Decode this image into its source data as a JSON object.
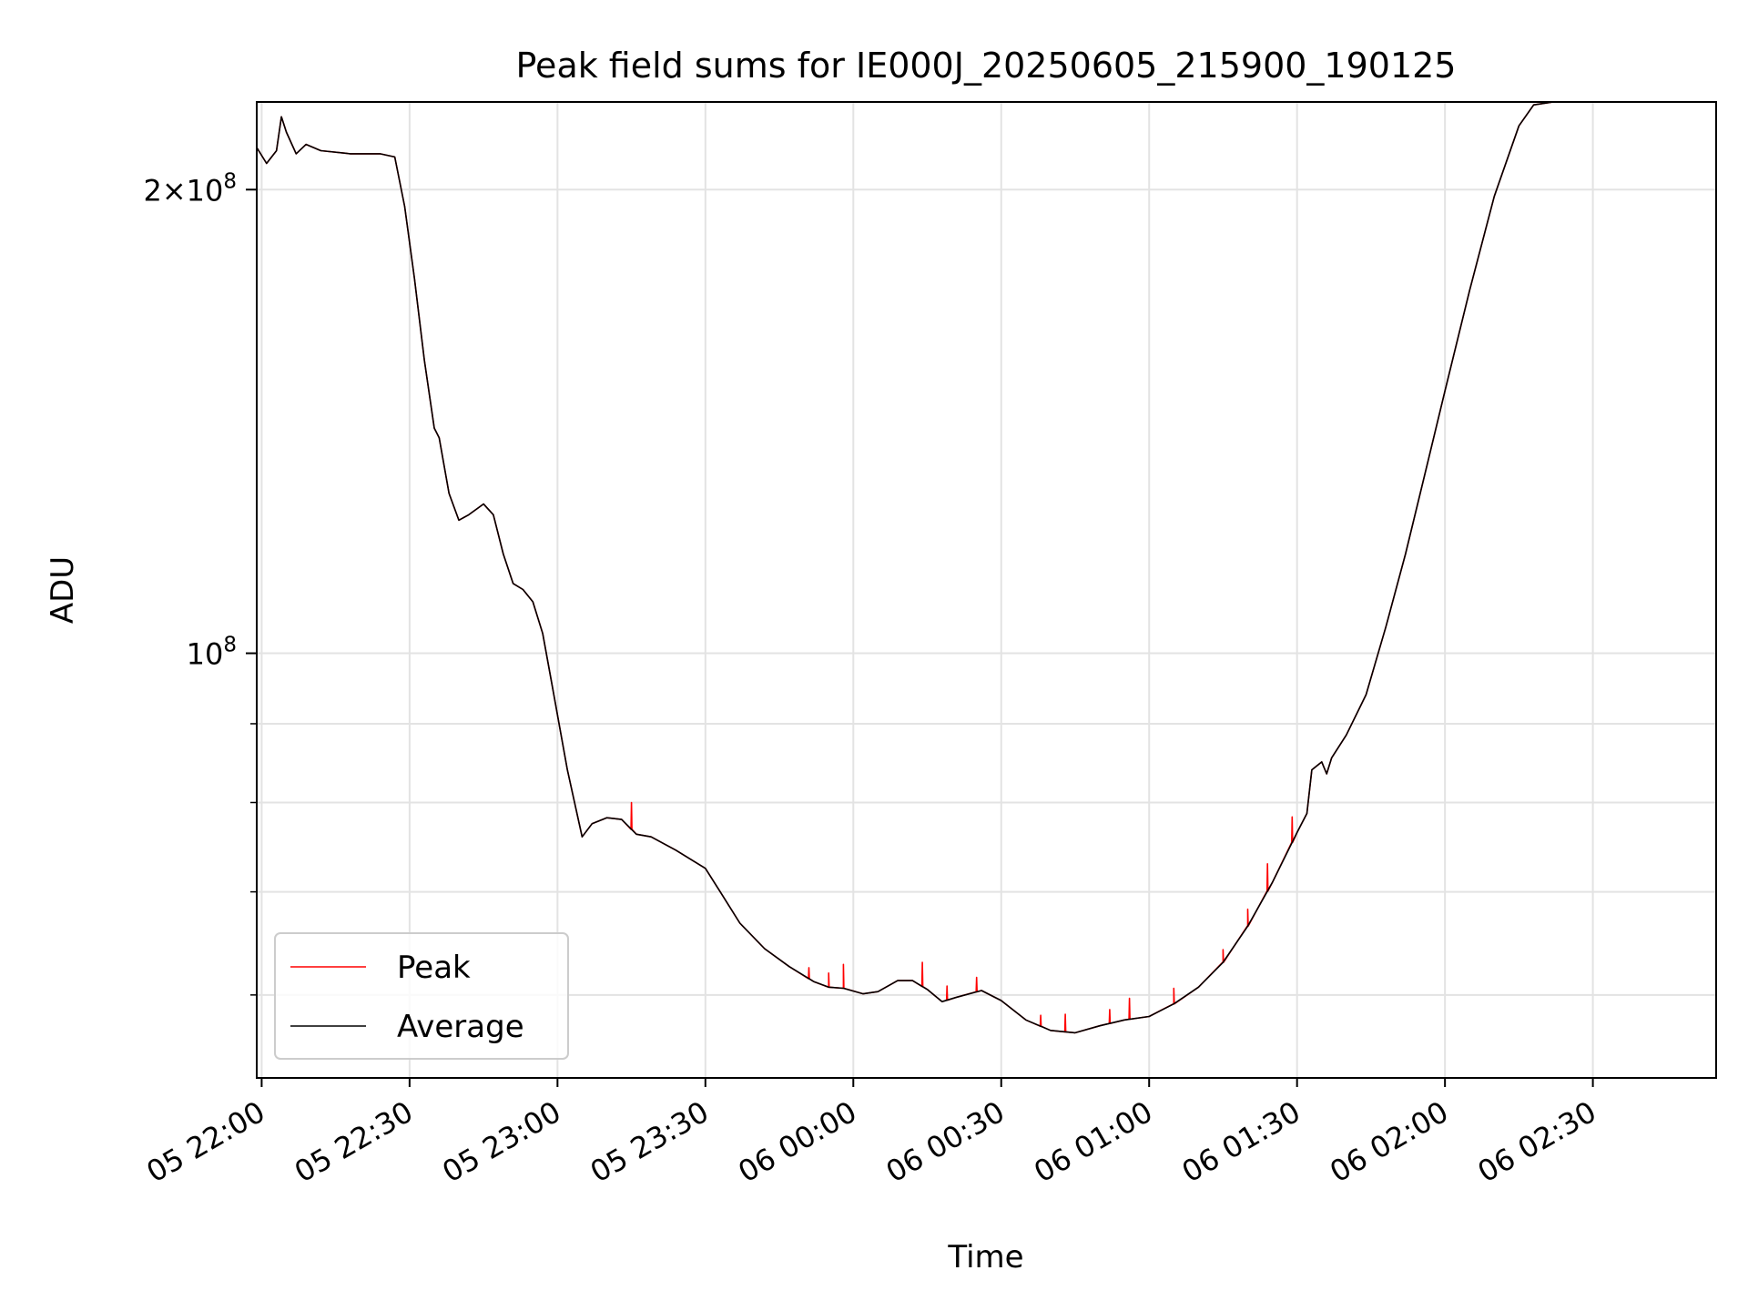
{
  "chart_data": {
    "type": "line",
    "title": "Peak field sums for IE000J_20250605_215900_190125",
    "xlabel": "Time",
    "ylabel": "ADU",
    "yscale": "log",
    "grid": true,
    "legend": {
      "placement": "lower-left",
      "entries": [
        "Peak",
        "Average"
      ]
    },
    "x_ticks": [
      "05 22:00",
      "05 22:30",
      "05 23:00",
      "05 23:30",
      "06 00:00",
      "06 00:30",
      "06 01:00",
      "06 01:30",
      "06 02:00",
      "06 02:30"
    ],
    "x_tick_values": [
      "2025-06-05 22:00",
      "2025-06-05 22:30",
      "2025-06-05 23:00",
      "2025-06-05 23:30",
      "2025-06-06 00:00",
      "2025-06-06 00:30",
      "2025-06-06 01:00",
      "2025-06-06 01:30",
      "2025-06-06 02:00",
      "2025-06-06 02:30"
    ],
    "xlim": [
      "2025-06-05 21:59",
      "2025-06-06 02:55"
    ],
    "y_ticks": [
      {
        "value": 100000000,
        "label": "10^8"
      },
      {
        "value": 200000000,
        "label": "2×10^8"
      }
    ],
    "y_minor_ticks": [
      60000000,
      70000000,
      80000000,
      90000000
    ],
    "ylim": [
      53000000,
      228000000
    ],
    "colors": {
      "Peak": "#ff0000",
      "Average": "#000000"
    },
    "series": [
      {
        "name": "Average",
        "points": [
          [
            "2025-06-05 21:59",
            213000000
          ],
          [
            "2025-06-05 22:01",
            208000000
          ],
          [
            "2025-06-05 22:03",
            212000000
          ],
          [
            "2025-06-05 22:04",
            223000000
          ],
          [
            "2025-06-05 22:05",
            218000000
          ],
          [
            "2025-06-05 22:07",
            211000000
          ],
          [
            "2025-06-05 22:09",
            214000000
          ],
          [
            "2025-06-05 22:12",
            212000000
          ],
          [
            "2025-06-05 22:18",
            211000000
          ],
          [
            "2025-06-05 22:24",
            211000000
          ],
          [
            "2025-06-05 22:27",
            210000000
          ],
          [
            "2025-06-05 22:29",
            195000000
          ],
          [
            "2025-06-05 22:31",
            175000000
          ],
          [
            "2025-06-05 22:33",
            155000000
          ],
          [
            "2025-06-05 22:35",
            140000000
          ],
          [
            "2025-06-05 22:36",
            138000000
          ],
          [
            "2025-06-05 22:38",
            127000000
          ],
          [
            "2025-06-05 22:40",
            122000000
          ],
          [
            "2025-06-05 22:42",
            123000000
          ],
          [
            "2025-06-05 22:45",
            125000000
          ],
          [
            "2025-06-05 22:47",
            123000000
          ],
          [
            "2025-06-05 22:49",
            116000000
          ],
          [
            "2025-06-05 22:51",
            111000000
          ],
          [
            "2025-06-05 22:53",
            110000000
          ],
          [
            "2025-06-05 22:55",
            108000000
          ],
          [
            "2025-06-05 22:57",
            103000000
          ],
          [
            "2025-06-05 22:59",
            95000000
          ],
          [
            "2025-06-05 23:02",
            84000000
          ],
          [
            "2025-06-05 23:05",
            76000000
          ],
          [
            "2025-06-05 23:07",
            77500000
          ],
          [
            "2025-06-05 23:10",
            78200000
          ],
          [
            "2025-06-05 23:13",
            78000000
          ],
          [
            "2025-06-05 23:16",
            76300000
          ],
          [
            "2025-06-05 23:19",
            76000000
          ],
          [
            "2025-06-05 23:24",
            74500000
          ],
          [
            "2025-06-05 23:30",
            72500000
          ],
          [
            "2025-06-05 23:33",
            70000000
          ],
          [
            "2025-06-05 23:37",
            66800000
          ],
          [
            "2025-06-05 23:42",
            64300000
          ],
          [
            "2025-06-05 23:47",
            62600000
          ],
          [
            "2025-06-05 23:52",
            61200000
          ],
          [
            "2025-06-05 23:55",
            60700000
          ],
          [
            "2025-06-05 23:58",
            60600000
          ],
          [
            "2025-06-06 00:02",
            60100000
          ],
          [
            "2025-06-06 00:05",
            60300000
          ],
          [
            "2025-06-06 00:09",
            61300000
          ],
          [
            "2025-06-06 00:12",
            61300000
          ],
          [
            "2025-06-06 00:15",
            60500000
          ],
          [
            "2025-06-06 00:18",
            59400000
          ],
          [
            "2025-06-06 00:21",
            59800000
          ],
          [
            "2025-06-06 00:26",
            60400000
          ],
          [
            "2025-06-06 00:30",
            59500000
          ],
          [
            "2025-06-06 00:35",
            57800000
          ],
          [
            "2025-06-06 00:40",
            56900000
          ],
          [
            "2025-06-06 00:45",
            56700000
          ],
          [
            "2025-06-06 00:50",
            57300000
          ],
          [
            "2025-06-06 00:55",
            57800000
          ],
          [
            "2025-06-06 01:00",
            58100000
          ],
          [
            "2025-06-06 01:05",
            59200000
          ],
          [
            "2025-06-06 01:10",
            60700000
          ],
          [
            "2025-06-06 01:15",
            63000000
          ],
          [
            "2025-06-06 01:20",
            66500000
          ],
          [
            "2025-06-06 01:25",
            71000000
          ],
          [
            "2025-06-06 01:30",
            76500000
          ],
          [
            "2025-06-06 01:32",
            78700000
          ],
          [
            "2025-06-06 01:33",
            84000000
          ],
          [
            "2025-06-06 01:35",
            85000000
          ],
          [
            "2025-06-06 01:36",
            83500000
          ],
          [
            "2025-06-06 01:37",
            85500000
          ],
          [
            "2025-06-06 01:40",
            88500000
          ],
          [
            "2025-06-06 01:44",
            94000000
          ],
          [
            "2025-06-06 01:48",
            104000000
          ],
          [
            "2025-06-06 01:52",
            116000000
          ],
          [
            "2025-06-06 01:56",
            131000000
          ],
          [
            "2025-06-06 02:00",
            148000000
          ],
          [
            "2025-06-06 02:05",
            172000000
          ],
          [
            "2025-06-06 02:10",
            198000000
          ],
          [
            "2025-06-06 02:15",
            220000000
          ],
          [
            "2025-06-06 02:18",
            227000000
          ],
          [
            "2025-06-06 02:22",
            228000000
          ],
          [
            "2025-06-06 02:55",
            228000000
          ]
        ]
      },
      {
        "name": "Peak",
        "spikes": [
          [
            "2025-06-05 23:15",
            80000000
          ],
          [
            "2025-06-05 23:51",
            62500000
          ],
          [
            "2025-06-05 23:55",
            62000000
          ],
          [
            "2025-06-05 23:58",
            62800000
          ],
          [
            "2025-06-06 00:14",
            63000000
          ],
          [
            "2025-06-06 00:19",
            60800000
          ],
          [
            "2025-06-06 00:25",
            61600000
          ],
          [
            "2025-06-06 00:38",
            58200000
          ],
          [
            "2025-06-06 00:43",
            58300000
          ],
          [
            "2025-06-06 00:52",
            58700000
          ],
          [
            "2025-06-06 00:56",
            59700000
          ],
          [
            "2025-06-06 01:05",
            60600000
          ],
          [
            "2025-06-06 01:15",
            64200000
          ],
          [
            "2025-06-06 01:20",
            68200000
          ],
          [
            "2025-06-06 01:24",
            73000000
          ],
          [
            "2025-06-06 01:29",
            78300000
          ]
        ]
      }
    ]
  }
}
